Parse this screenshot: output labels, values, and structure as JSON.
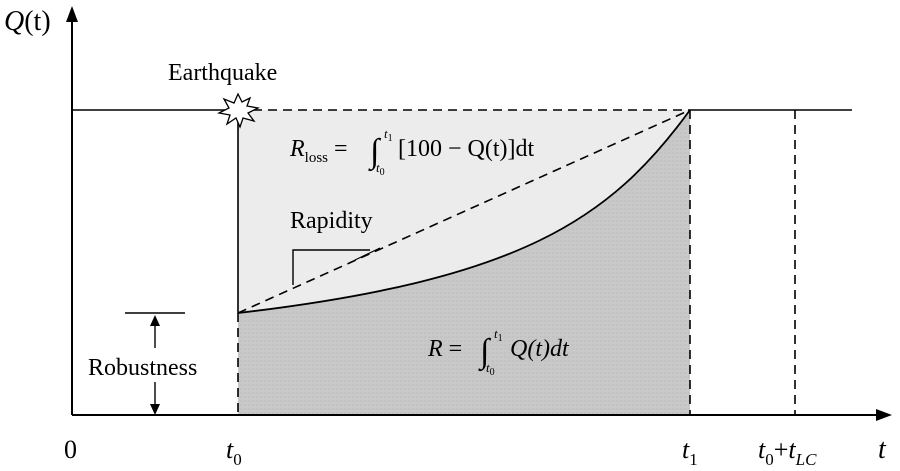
{
  "axes": {
    "y_label": {
      "main": "Q",
      "arg": "(t)"
    },
    "x_label": "t",
    "origin_label": "0",
    "tick_t0": {
      "var": "t",
      "sub": "0"
    },
    "tick_t1": {
      "var": "t",
      "sub": "1"
    },
    "tick_tlc": {
      "var1": "t",
      "sub1": "0",
      "plus": "+",
      "var2": "t",
      "sub2": "LC"
    }
  },
  "labels": {
    "earthquake": "Earthquake",
    "rapidity": "Rapidity",
    "robustness": "Robustness"
  },
  "equations": {
    "r_loss": {
      "lhs_var": "R",
      "lhs_sub": "loss",
      "equals": "=",
      "integral": "∫",
      "upper": "t",
      "upper_sub": "1",
      "lower": "t",
      "lower_sub": "0",
      "body": "[100 − Q(t)]dt"
    },
    "r": {
      "lhs_var": "R",
      "equals": "=",
      "integral": "∫",
      "upper": "t",
      "upper_sub": "1",
      "lower": "t",
      "lower_sub": "0",
      "body": "Q(t)dt"
    }
  },
  "colors": {
    "light_fill": "#ececec",
    "dark_fill": "#c8c8c8",
    "stroke": "#000000"
  }
}
